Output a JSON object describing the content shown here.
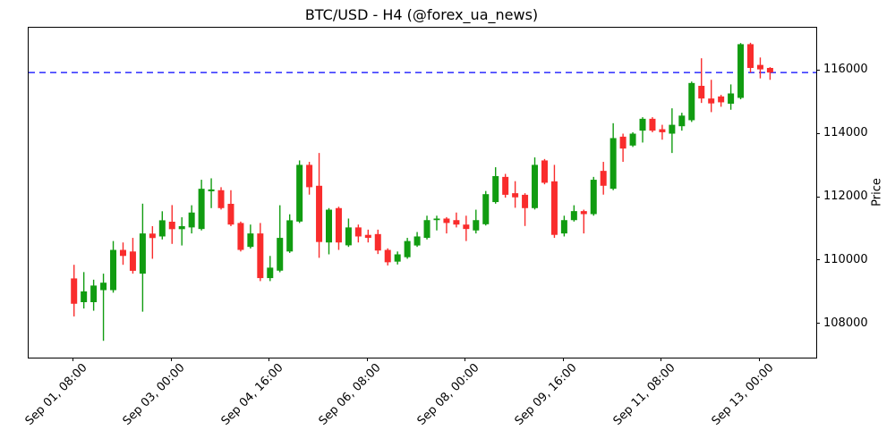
{
  "chart_data": {
    "type": "candlestick",
    "title": "BTC/USD - H4 (@forex_ua_news)",
    "symbol": "BTC/USD",
    "timeframe": "H4",
    "ylabel_right": "Price",
    "grid": false,
    "ylim": [
      106950,
      117365
    ],
    "xlim_index": [
      -4.63,
      75.71
    ],
    "y_ticks": [
      108000,
      110000,
      112000,
      114000,
      116000
    ],
    "x_ticks": {
      "labels": [
        "Sep 01, 08:00",
        "Sep 03, 00:00",
        "Sep 04, 16:00",
        "Sep 06, 08:00",
        "Sep 08, 00:00",
        "Sep 09, 16:00",
        "Sep 11, 08:00",
        "Sep 13, 00:00"
      ],
      "indices": [
        0,
        10,
        20,
        30,
        40,
        50,
        60,
        70
      ]
    },
    "current_price_line": {
      "price": 115950,
      "color": "#0000ff",
      "style": "dashed"
    },
    "up_color": "#119c11",
    "down_color": "#f92c2c",
    "candles": [
      [
        "Sep 01 08:00",
        109450,
        109880,
        108250,
        108650
      ],
      [
        "Sep 01 12:00",
        108700,
        109650,
        108500,
        109040
      ],
      [
        "Sep 01 16:00",
        108700,
        109410,
        108430,
        109225
      ],
      [
        "Sep 01 20:00",
        109080,
        109600,
        107480,
        109315
      ],
      [
        "Sep 02 00:00",
        109080,
        110630,
        109000,
        110350
      ],
      [
        "Sep 02 04:00",
        110350,
        110585,
        109880,
        110160
      ],
      [
        "Sep 02 08:00",
        110300,
        110730,
        109600,
        109690
      ],
      [
        "Sep 02 12:00",
        109600,
        111810,
        108400,
        110870
      ],
      [
        "Sep 02 16:00",
        110865,
        111100,
        110070,
        110725
      ],
      [
        "Sep 02 20:00",
        110775,
        111570,
        110680,
        111285
      ],
      [
        "Sep 03 00:00",
        111240,
        111765,
        110540,
        111005
      ],
      [
        "Sep 03 04:00",
        111005,
        111380,
        110490,
        111100
      ],
      [
        "Sep 03 08:00",
        111060,
        111760,
        110870,
        111530
      ],
      [
        "Sep 03 12:00",
        111010,
        112565,
        110965,
        112280
      ],
      [
        "Sep 03 16:00",
        112200,
        112610,
        111670,
        112260
      ],
      [
        "Sep 03 20:00",
        112235,
        112330,
        111625,
        111670
      ],
      [
        "Sep 04 00:00",
        111805,
        112235,
        111100,
        111150
      ],
      [
        "Sep 04 04:00",
        111200,
        111245,
        110300,
        110350
      ],
      [
        "Sep 04 08:00",
        110445,
        111150,
        110395,
        110870
      ],
      [
        "Sep 04 12:00",
        110870,
        111200,
        109365,
        109460
      ],
      [
        "Sep 04 16:00",
        109460,
        110160,
        109365,
        109790
      ],
      [
        "Sep 04 20:00",
        109695,
        111760,
        109645,
        110730
      ],
      [
        "Sep 05 00:00",
        110300,
        111475,
        110255,
        111285
      ],
      [
        "Sep 05 04:00",
        111245,
        113175,
        111200,
        113035
      ],
      [
        "Sep 05 08:00",
        113035,
        113130,
        112095,
        112330
      ],
      [
        "Sep 05 12:00",
        112375,
        113410,
        110100,
        110600
      ],
      [
        "Sep 05 16:00",
        110585,
        111670,
        110210,
        111620
      ],
      [
        "Sep 05 20:00",
        111670,
        111715,
        110350,
        110585
      ],
      [
        "Sep 06 00:00",
        110495,
        111340,
        110445,
        111060
      ],
      [
        "Sep 06 04:00",
        111060,
        111150,
        110585,
        110775
      ],
      [
        "Sep 06 08:00",
        110825,
        110990,
        110585,
        110730
      ],
      [
        "Sep 06 12:00",
        110850,
        110990,
        110220,
        110330
      ],
      [
        "Sep 06 16:00",
        110350,
        110400,
        109860,
        109960
      ],
      [
        "Sep 06 20:00",
        109980,
        110300,
        109890,
        110210
      ],
      [
        "Sep 07 00:00",
        110120,
        110730,
        110070,
        110630
      ],
      [
        "Sep 07 04:00",
        110490,
        110915,
        110445,
        110775
      ],
      [
        "Sep 07 08:00",
        110730,
        111430,
        110680,
        111290
      ],
      [
        "Sep 07 12:00",
        111290,
        111430,
        110965,
        111340
      ],
      [
        "Sep 07 16:00",
        111340,
        111385,
        110870,
        111200
      ],
      [
        "Sep 07 20:00",
        111290,
        111530,
        111060,
        111150
      ],
      [
        "Sep 08 00:00",
        111150,
        111430,
        110630,
        111010
      ],
      [
        "Sep 08 04:00",
        110965,
        111620,
        110870,
        111290
      ],
      [
        "Sep 08 08:00",
        111160,
        112210,
        111120,
        112110
      ],
      [
        "Sep 08 12:00",
        111860,
        112960,
        111810,
        112680
      ],
      [
        "Sep 08 16:00",
        112655,
        112750,
        112000,
        112090
      ],
      [
        "Sep 08 20:00",
        112140,
        112520,
        111680,
        112010
      ],
      [
        "Sep 09 00:00",
        112090,
        112140,
        111105,
        111670
      ],
      [
        "Sep 09 04:00",
        111670,
        113270,
        111625,
        113035
      ],
      [
        "Sep 09 08:00",
        113175,
        113220,
        112420,
        112470
      ],
      [
        "Sep 09 12:00",
        112515,
        113035,
        110730,
        110825
      ],
      [
        "Sep 09 16:00",
        110870,
        111430,
        110775,
        111290
      ],
      [
        "Sep 09 20:00",
        111290,
        111760,
        111245,
        111575
      ],
      [
        "Sep 10 00:00",
        111575,
        111620,
        110870,
        111480
      ],
      [
        "Sep 10 04:00",
        111480,
        112655,
        111430,
        112565
      ],
      [
        "Sep 10 08:00",
        112845,
        113130,
        112095,
        112375
      ],
      [
        "Sep 10 12:00",
        112280,
        114350,
        112235,
        113880
      ],
      [
        "Sep 10 16:00",
        113925,
        114020,
        113130,
        113550
      ],
      [
        "Sep 10 20:00",
        113645,
        114065,
        113600,
        114020
      ],
      [
        "Sep 11 00:00",
        114115,
        114540,
        113740,
        114490
      ],
      [
        "Sep 11 04:00",
        114490,
        114540,
        114065,
        114115
      ],
      [
        "Sep 11 08:00",
        114160,
        114300,
        113830,
        114065
      ],
      [
        "Sep 11 12:00",
        114020,
        114820,
        113410,
        114300
      ],
      [
        "Sep 11 16:00",
        114255,
        114680,
        114115,
        114590
      ],
      [
        "Sep 11 20:00",
        114445,
        115665,
        114390,
        115620
      ],
      [
        "Sep 12 00:00",
        115530,
        116400,
        114990,
        115130
      ],
      [
        "Sep 12 04:00",
        115130,
        115720,
        114700,
        114975
      ],
      [
        "Sep 12 08:00",
        115195,
        115245,
        114870,
        115010
      ],
      [
        "Sep 12 12:00",
        114965,
        115575,
        114775,
        115290
      ],
      [
        "Sep 12 16:00",
        115150,
        116880,
        115105,
        116845
      ],
      [
        "Sep 12 20:00",
        116845,
        116890,
        115950,
        116095
      ],
      [
        "Sep 13 00:00",
        116190,
        116425,
        115765,
        116050
      ],
      [
        "Sep 13 04:00",
        116095,
        116120,
        115720,
        115950
      ]
    ]
  }
}
